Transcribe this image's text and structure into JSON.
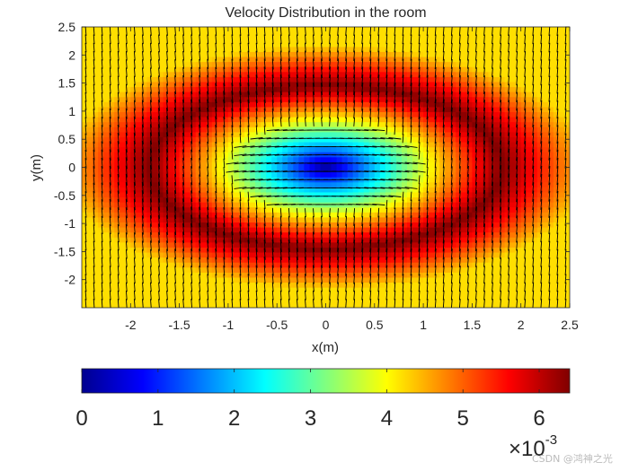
{
  "chart_data": {
    "type": "heatmap",
    "title": "Velocity Distribution in the room",
    "xlabel": "x(m)",
    "ylabel": "y(m)",
    "xlim": [
      -2.5,
      2.5
    ],
    "ylim": [
      -2.5,
      2.5
    ],
    "x_ticks": [
      -2,
      -1.5,
      -1,
      -0.5,
      0,
      0.5,
      1,
      1.5,
      2,
      2.5
    ],
    "x_tick_labels": [
      "-2",
      "-1.5",
      "-1",
      "-0.5",
      "0",
      "0.5",
      "1",
      "1.5",
      "2",
      "2.5"
    ],
    "y_ticks": [
      2.5,
      2,
      1.5,
      1,
      0.5,
      0,
      -0.5,
      -1,
      -1.5,
      -2
    ],
    "y_tick_labels": [
      "2.5",
      "2",
      "1.5",
      "1",
      "0.5",
      "0",
      "-0.5",
      "-1",
      "-1.5",
      "-2"
    ],
    "colormap": "jet",
    "overlay": "quiver (velocity vectors, black)",
    "field": {
      "center_value": 0.0,
      "ring_peak_value": 0.0064,
      "ring_radius_x": 1.8,
      "ring_radius_y": 1.45,
      "ring_width": 0.7,
      "outer_value": 0.0042
    },
    "colorbar": {
      "location": "southoutside",
      "clim": [
        0,
        0.0064
      ],
      "ticks": [
        0,
        1,
        2,
        3,
        4,
        5,
        6
      ],
      "tick_labels": [
        "0",
        "1",
        "2",
        "3",
        "4",
        "5",
        "6"
      ],
      "exponent_base": "×10",
      "exponent_power": "-3"
    }
  },
  "watermark": "CSDN @鸿神之光",
  "colors": {
    "axis": "#262626",
    "vectors": "#000000",
    "background": "#ffffff"
  }
}
